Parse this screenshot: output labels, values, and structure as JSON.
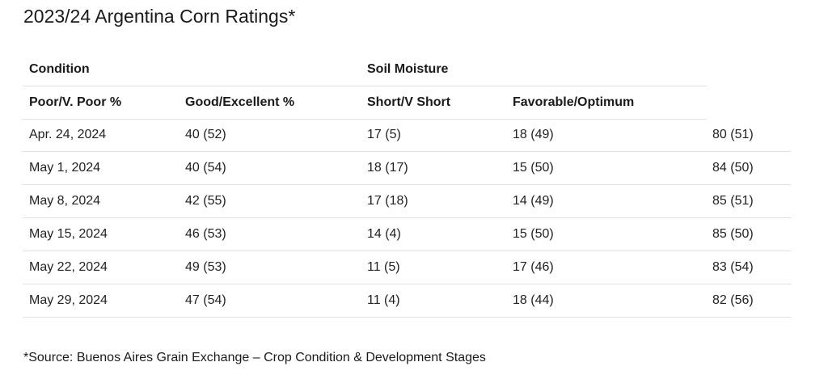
{
  "title": "2023/24 Argentina Corn Ratings*",
  "table": {
    "group_headers": {
      "condition": "Condition",
      "soil_moisture": "Soil Moisture"
    },
    "columns": [
      "Poor/V. Poor %",
      "Good/Excellent %",
      "Short/V Short",
      "Favorable/Optimum"
    ],
    "rows": [
      [
        "Apr. 24, 2024",
        "40 (52)",
        "17 (5)",
        "18 (49)",
        "80 (51)"
      ],
      [
        "May 1, 2024",
        "40 (54)",
        "18 (17)",
        "15 (50)",
        "84 (50)"
      ],
      [
        "May 8, 2024",
        "42 (55)",
        "17 (18)",
        "14 (49)",
        "85 (51)"
      ],
      [
        "May 15, 2024",
        "46 (53)",
        "14 (4)",
        "15 (50)",
        "85 (50)"
      ],
      [
        "May 22, 2024",
        "49 (53)",
        "11 (5)",
        "17 (46)",
        "83 (54)"
      ],
      [
        "May 29, 2024",
        "47 (54)",
        "11 (4)",
        "18 (44)",
        "82 (56)"
      ]
    ]
  },
  "source": "*Source: Buenos Aires Grain Exchange – Crop Condition & Development Stages"
}
